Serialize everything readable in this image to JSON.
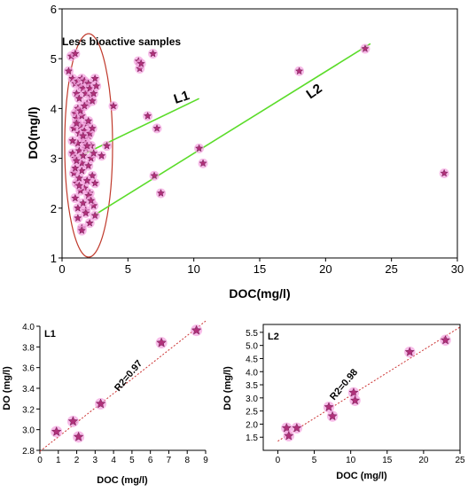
{
  "colors": {
    "star": "#b0307a",
    "star_halo": "#f4a6e0",
    "fit_line": "#5bdc2a",
    "ellipse": "#c0392b",
    "dashed_fit": "#cc3333"
  },
  "chart_data": [
    {
      "type": "scatter",
      "title": "",
      "xlabel": "DOC(mg/l)",
      "ylabel": "DO(mg/l)",
      "xlim": [
        0,
        30
      ],
      "ylim": [
        1,
        6
      ],
      "xticks": [
        "0",
        "5",
        "10",
        "15",
        "20",
        "25",
        "30"
      ],
      "yticks": [
        "1",
        "2",
        "3",
        "4",
        "5",
        "6"
      ],
      "annotations": {
        "ellipse_label": "Less bioactive samples",
        "line1_label": "L1",
        "line2_label": "L2"
      },
      "series": [
        {
          "x": [
            0.5,
            0.7,
            0.8,
            1.0,
            1.0,
            1.1,
            1.2,
            1.2,
            1.3,
            1.4,
            1.5,
            1.6,
            1.7,
            1.8,
            1.9,
            2.0,
            2.1,
            2.2,
            2.3,
            2.4,
            2.5,
            2.6,
            0.9,
            1.0,
            1.1,
            1.2,
            1.3,
            1.4,
            1.5,
            1.6,
            1.7,
            1.8,
            1.9,
            2.0,
            2.1,
            2.2,
            2.3,
            0.8,
            1.0,
            1.2,
            1.3,
            1.5,
            1.6,
            1.8,
            2.0,
            2.2,
            2.4,
            0.9,
            1.1,
            1.3,
            1.5,
            1.7,
            1.9,
            2.1,
            2.3,
            2.5,
            1.0,
            1.2,
            1.4,
            1.6,
            1.8,
            2.0,
            1.2,
            1.5,
            1.8,
            2.1,
            2.4,
            1.0,
            1.4,
            1.7,
            2.0,
            0.8,
            1.1,
            1.3,
            1.6,
            1.9,
            2.2,
            1.1,
            1.5,
            1.9,
            2.5,
            3.0,
            3.4,
            3.9,
            5.8,
            5.9,
            6.0,
            6.5,
            6.9,
            7.0,
            7.2,
            7.5,
            10.4,
            10.7,
            18.0,
            23.0,
            29.0
          ],
          "y": [
            4.75,
            5.05,
            4.6,
            5.1,
            4.5,
            4.3,
            4.55,
            3.7,
            4.2,
            4.45,
            4.6,
            4.4,
            4.55,
            4.3,
            4.1,
            4.5,
            4.4,
            4.25,
            4.15,
            4.3,
            4.6,
            4.45,
            3.6,
            3.9,
            3.8,
            4.0,
            3.5,
            3.65,
            3.85,
            3.4,
            3.55,
            3.3,
            3.7,
            3.45,
            3.5,
            3.25,
            3.6,
            3.1,
            3.0,
            3.3,
            3.15,
            2.9,
            3.05,
            3.2,
            2.85,
            3.0,
            3.1,
            2.7,
            2.5,
            2.6,
            2.75,
            2.4,
            2.55,
            2.3,
            2.65,
            2.5,
            2.2,
            2.0,
            2.35,
            2.1,
            1.95,
            2.25,
            1.8,
            1.6,
            1.9,
            1.7,
            2.05,
            2.8,
            3.95,
            4.05,
            3.75,
            3.35,
            2.95,
            2.45,
            3.45,
            3.25,
            2.15,
            3.7,
            1.55,
            2.55,
            1.85,
            3.05,
            3.25,
            4.05,
            4.95,
            4.8,
            4.9,
            3.85,
            5.1,
            2.65,
            3.6,
            2.3,
            3.2,
            2.9,
            4.75,
            5.2,
            2.7
          ]
        }
      ],
      "fit_lines": [
        {
          "name": "L1",
          "x": [
            1.0,
            10.4
          ],
          "y": [
            3.0,
            4.2
          ]
        },
        {
          "name": "L2",
          "x": [
            2.4,
            23.4
          ],
          "y": [
            1.85,
            5.3
          ]
        }
      ]
    },
    {
      "type": "scatter",
      "title": "",
      "panel_label": "L1",
      "xlabel": "DOC (mg/l)",
      "ylabel": "DO (mg/l)",
      "xlim": [
        0,
        9
      ],
      "ylim": [
        2.8,
        4.0
      ],
      "xticks": [
        "0",
        "1",
        "2",
        "3",
        "4",
        "5",
        "6",
        "7",
        "8",
        "9"
      ],
      "yticks": [
        "2.8",
        "3.0",
        "3.2",
        "3.4",
        "3.6",
        "3.8",
        "4.0"
      ],
      "annotation": "R2=0.97",
      "series": [
        {
          "x": [
            0.9,
            1.8,
            2.1,
            3.3,
            6.6,
            8.5
          ],
          "y": [
            2.98,
            3.08,
            2.93,
            3.25,
            3.84,
            3.96
          ]
        }
      ],
      "fit_line": {
        "x": [
          0.0,
          9.0
        ],
        "y": [
          2.79,
          4.05
        ]
      }
    },
    {
      "type": "scatter",
      "title": "",
      "panel_label": "L2",
      "xlabel": "DOC (mg/l)",
      "ylabel": "DO (mg/l)",
      "xlim": [
        -2,
        25
      ],
      "ylim": [
        1.0,
        5.8
      ],
      "xticks": [
        "0",
        "5",
        "10",
        "15",
        "20",
        "25"
      ],
      "yticks": [
        "1.5",
        "2.0",
        "2.5",
        "3.0",
        "3.5",
        "4.0",
        "4.5",
        "5.0",
        "5.5"
      ],
      "annotation": "R2=0.98",
      "series": [
        {
          "x": [
            1.2,
            1.5,
            2.6,
            7.0,
            7.5,
            10.4,
            10.6,
            18.1,
            23.0
          ],
          "y": [
            1.85,
            1.55,
            1.85,
            2.65,
            2.3,
            3.2,
            2.9,
            4.75,
            5.2
          ]
        }
      ],
      "fit_line": {
        "x": [
          0.0,
          25.0
        ],
        "y": [
          1.35,
          5.7
        ]
      }
    }
  ]
}
